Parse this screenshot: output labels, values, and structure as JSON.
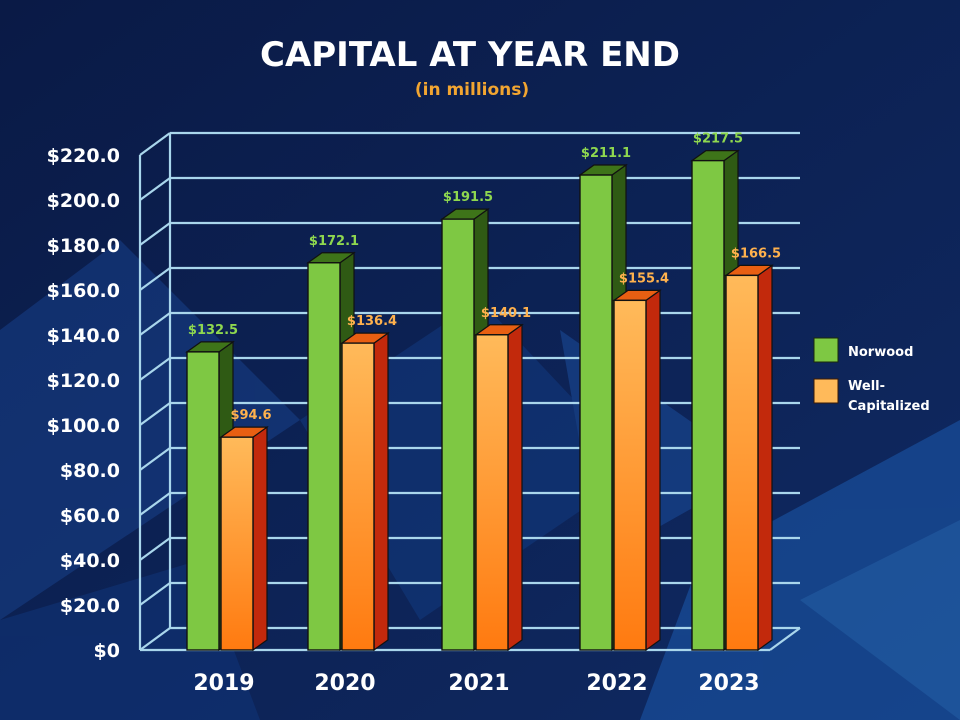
{
  "chart_data": {
    "type": "bar",
    "title": "CAPITAL AT YEAR END",
    "subtitle": "(in millions)",
    "categories": [
      "2019",
      "2020",
      "2021",
      "2022",
      "2023"
    ],
    "series": [
      {
        "name": "Norwood",
        "values": [
          132.5,
          172.1,
          191.5,
          211.1,
          217.5
        ],
        "labels": [
          "$132.5",
          "$172.1",
          "$191.5",
          "$211.1",
          "$217.5"
        ]
      },
      {
        "name": "Well-Capitalized",
        "values": [
          94.6,
          136.4,
          140.1,
          155.4,
          166.5
        ],
        "labels": [
          "$94.6",
          "$136.4",
          "$140.1",
          "$155.4",
          "$166.5"
        ]
      }
    ],
    "legend": [
      {
        "line1": "Norwood",
        "line2": ""
      },
      {
        "line1": "Well-",
        "line2": "Capitalized"
      }
    ],
    "yticks": [
      0,
      20,
      40,
      60,
      80,
      100,
      120,
      140,
      160,
      180,
      200,
      220
    ],
    "ytick_labels": [
      "$0",
      "$20.0",
      "$40.0",
      "$60.0",
      "$80.0",
      "$100.0",
      "$120.0",
      "$140.0",
      "$160.0",
      "$180.0",
      "$200.0",
      "$220.0"
    ],
    "ylim": [
      0,
      220
    ],
    "xlabel": "",
    "ylabel": "",
    "grid": true,
    "legend_position": "right"
  },
  "colors": {
    "background": "#0c1d4d",
    "grid": "#a9d6ec",
    "norwood_front": "#7ec843",
    "norwood_side": "#2f5a14",
    "norwood_top": "#3e7419",
    "wellcap_top_color": "#ffba5a",
    "wellcap_bottom_color": "#ff7a10",
    "wellcap_side": "#c2290c",
    "wellcap_top": "#e85f12",
    "norwood_label": "#8fd84f",
    "wellcap_label": "#ffb14d",
    "subtitle": "#f2a531"
  }
}
